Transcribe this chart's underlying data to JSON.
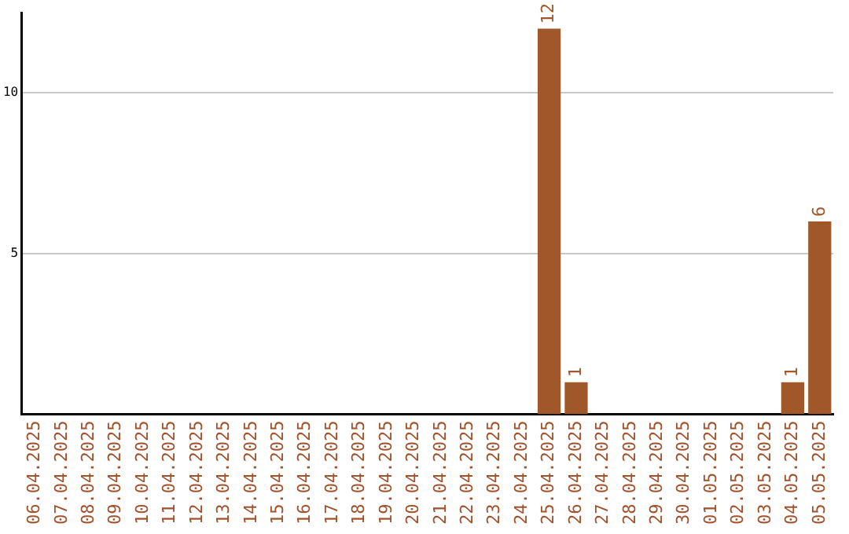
{
  "chart_data": {
    "type": "bar",
    "categories": [
      "06.04.2025",
      "07.04.2025",
      "08.04.2025",
      "09.04.2025",
      "10.04.2025",
      "11.04.2025",
      "12.04.2025",
      "13.04.2025",
      "14.04.2025",
      "15.04.2025",
      "16.04.2025",
      "17.04.2025",
      "18.04.2025",
      "19.04.2025",
      "20.04.2025",
      "21.04.2025",
      "22.04.2025",
      "23.04.2025",
      "24.04.2025",
      "25.04.2025",
      "26.04.2025",
      "27.04.2025",
      "28.04.2025",
      "29.04.2025",
      "30.04.2025",
      "01.05.2025",
      "02.05.2025",
      "03.05.2025",
      "04.05.2025",
      "05.05.2025"
    ],
    "values": [
      0,
      0,
      0,
      0,
      0,
      0,
      0,
      0,
      0,
      0,
      0,
      0,
      0,
      0,
      0,
      0,
      0,
      0,
      0,
      12,
      1,
      0,
      0,
      0,
      0,
      0,
      0,
      0,
      1,
      6
    ],
    "value_labels": [
      null,
      null,
      null,
      null,
      null,
      null,
      null,
      null,
      null,
      null,
      null,
      null,
      null,
      null,
      null,
      null,
      null,
      null,
      null,
      "12",
      "1",
      null,
      null,
      null,
      null,
      null,
      null,
      null,
      "1",
      "6"
    ],
    "color": "#a0582a",
    "ylim": [
      0,
      12.5
    ],
    "yticks": [
      5,
      10
    ],
    "grid": "y",
    "legend": false
  }
}
